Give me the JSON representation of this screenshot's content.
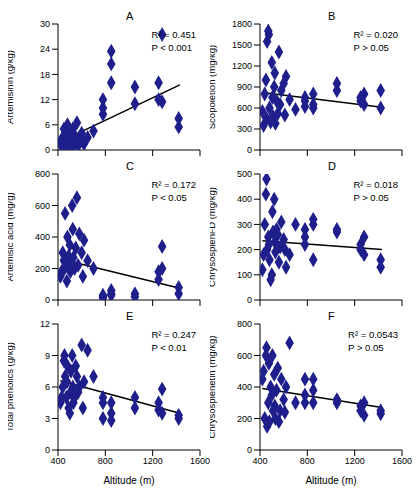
{
  "chart_data": [
    {
      "type": "scatter",
      "title": "A",
      "y_label": "Artemisinin (g/kg)",
      "annotations": [
        "R² = 0.451",
        "P < 0.001"
      ],
      "color": "#1f1f8c",
      "marker": "diamond",
      "tick_labels": "y",
      "xlim": [
        400,
        1600
      ],
      "xticks": [
        400,
        800,
        1200,
        1600
      ],
      "ylim": [
        0,
        30
      ],
      "yticks": [
        0,
        6,
        12,
        18,
        24,
        30
      ],
      "x": [
        420,
        430,
        440,
        450,
        455,
        460,
        470,
        475,
        480,
        490,
        500,
        505,
        510,
        520,
        525,
        530,
        540,
        550,
        560,
        570,
        580,
        600,
        610,
        620,
        650,
        700,
        780,
        780,
        780,
        850,
        850,
        850,
        1050,
        1050,
        1250,
        1250,
        1280,
        1280,
        1420,
        1420
      ],
      "values": [
        2,
        1,
        3,
        5,
        0.5,
        4,
        2,
        1.5,
        6,
        3,
        1,
        2.5,
        4.5,
        0.8,
        5,
        1.2,
        3.5,
        2,
        6.5,
        1,
        3,
        4,
        2,
        1.5,
        3,
        4.5,
        8.5,
        12,
        10,
        16,
        20.5,
        23.5,
        11,
        15,
        12,
        16,
        27.5,
        11.5,
        5.5,
        7.5
      ],
      "trend_line": {
        "x": [
          420,
          1430
        ],
        "y": [
          2,
          15.5
        ]
      }
    },
    {
      "type": "scatter",
      "title": "B",
      "y_label": "Scopoletion (mg/kg)",
      "annotations": [
        "R² = 0.020",
        "P > 0.05"
      ],
      "color": "#1f1f8c",
      "marker": "diamond",
      "tick_labels": "y",
      "xlim": [
        400,
        1600
      ],
      "xticks": [
        400,
        800,
        1200,
        1600
      ],
      "ylim": [
        0,
        1800
      ],
      "yticks": [
        0,
        300,
        600,
        900,
        1200,
        1500,
        1800
      ],
      "x": [
        420,
        430,
        440,
        450,
        455,
        460,
        470,
        475,
        480,
        490,
        500,
        505,
        510,
        520,
        525,
        530,
        540,
        550,
        560,
        570,
        580,
        600,
        610,
        620,
        650,
        700,
        780,
        780,
        780,
        850,
        850,
        850,
        1050,
        1050,
        1250,
        1250,
        1280,
        1280,
        1420,
        1420
      ],
      "values": [
        550,
        350,
        800,
        1000,
        450,
        1550,
        1700,
        1650,
        600,
        400,
        1250,
        750,
        480,
        900,
        1100,
        380,
        700,
        520,
        1400,
        650,
        850,
        950,
        500,
        1050,
        720,
        580,
        750,
        700,
        620,
        800,
        650,
        600,
        950,
        850,
        700,
        750,
        650,
        800,
        600,
        850
      ],
      "trend_line": {
        "x": [
          420,
          1430
        ],
        "y": [
          820,
          610
        ]
      }
    },
    {
      "type": "scatter",
      "title": "C",
      "y_label": "Artemisic acid (mg/g)",
      "annotations": [
        "R² = 0.172",
        "P < 0.05"
      ],
      "color": "#1f1f8c",
      "marker": "diamond",
      "tick_labels": "y",
      "xlim": [
        400,
        1600
      ],
      "xticks": [
        400,
        800,
        1200,
        1600
      ],
      "ylim": [
        0,
        800
      ],
      "yticks": [
        0,
        200,
        400,
        600,
        800
      ],
      "x": [
        420,
        430,
        440,
        450,
        455,
        460,
        470,
        475,
        480,
        490,
        500,
        505,
        510,
        520,
        525,
        530,
        540,
        550,
        560,
        570,
        580,
        600,
        610,
        620,
        650,
        700,
        780,
        780,
        780,
        850,
        850,
        850,
        1050,
        1050,
        1250,
        1250,
        1280,
        1280,
        1420,
        1420
      ],
      "values": [
        150,
        180,
        300,
        250,
        200,
        550,
        220,
        120,
        400,
        280,
        350,
        180,
        240,
        600,
        450,
        270,
        200,
        330,
        650,
        220,
        420,
        300,
        150,
        380,
        250,
        200,
        20,
        30,
        15,
        40,
        60,
        30,
        40,
        20,
        130,
        180,
        200,
        340,
        40,
        80
      ],
      "trend_line": {
        "x": [
          420,
          1430
        ],
        "y": [
          260,
          75
        ]
      }
    },
    {
      "type": "scatter",
      "title": "D",
      "y_label": "Chrysosplenl-D (mg/kg)",
      "annotations": [
        "R² = 0.018",
        "P > 0.05"
      ],
      "color": "#1f1f8c",
      "marker": "diamond",
      "tick_labels": "y",
      "xlim": [
        400,
        1600
      ],
      "xticks": [
        400,
        800,
        1200,
        1600
      ],
      "ylim": [
        0,
        500
      ],
      "yticks": [
        0,
        100,
        200,
        300,
        400,
        500
      ],
      "x": [
        420,
        430,
        440,
        450,
        455,
        460,
        470,
        475,
        480,
        490,
        500,
        505,
        510,
        520,
        525,
        530,
        540,
        550,
        560,
        570,
        580,
        600,
        610,
        620,
        650,
        700,
        780,
        780,
        780,
        850,
        850,
        850,
        1050,
        1050,
        1250,
        1250,
        1280,
        1280,
        1420,
        1420
      ],
      "values": [
        120,
        180,
        300,
        420,
        480,
        200,
        250,
        220,
        160,
        80,
        100,
        350,
        270,
        400,
        230,
        190,
        280,
        260,
        150,
        210,
        310,
        240,
        200,
        130,
        180,
        300,
        250,
        280,
        220,
        320,
        300,
        160,
        270,
        280,
        200,
        220,
        250,
        180,
        130,
        160
      ],
      "trend_line": {
        "x": [
          420,
          1430
        ],
        "y": [
          235,
          200
        ]
      }
    },
    {
      "type": "scatter",
      "title": "E",
      "y_label": "Total phenolics (g/kg)",
      "x_label": "Altitude (m)",
      "annotations": [
        "R² = 0.247",
        "P < 0.01"
      ],
      "color": "#1f1f8c",
      "marker": "diamond",
      "xlim": [
        400,
        1600
      ],
      "xticks": [
        400,
        800,
        1200,
        1600
      ],
      "ylim": [
        0,
        12
      ],
      "yticks": [
        0,
        3,
        6,
        9,
        12
      ],
      "x": [
        420,
        430,
        440,
        450,
        455,
        460,
        470,
        475,
        480,
        490,
        500,
        505,
        510,
        520,
        525,
        530,
        540,
        550,
        560,
        570,
        580,
        600,
        610,
        620,
        650,
        700,
        780,
        780,
        780,
        850,
        850,
        850,
        1050,
        1050,
        1250,
        1250,
        1280,
        1280,
        1420,
        1420
      ],
      "values": [
        4.5,
        5,
        6,
        8.5,
        9,
        7,
        5,
        6.5,
        8,
        4,
        3.5,
        5.5,
        7.5,
        9,
        6,
        4.5,
        5,
        8,
        7,
        5.5,
        6,
        10,
        4,
        6.5,
        9.5,
        7,
        3,
        5,
        4.5,
        4.5,
        2.8,
        3.5,
        4,
        5,
        3.8,
        4.5,
        5.8,
        3.5,
        3.3,
        3
      ],
      "trend_line": {
        "x": [
          420,
          1430
        ],
        "y": [
          6.6,
          3.5
        ]
      }
    },
    {
      "type": "scatter",
      "title": "F",
      "y_label": "Chrysosplenetin (mg/kg)",
      "x_label": "Altitude (m)",
      "annotations": [
        "R² = 0.0543",
        "P > 0.05"
      ],
      "color": "#1f1f8c",
      "marker": "diamond",
      "xlim": [
        400,
        1600
      ],
      "xticks": [
        400,
        800,
        1200,
        1600
      ],
      "ylim": [
        0,
        800
      ],
      "yticks": [
        0,
        200,
        400,
        600,
        800
      ],
      "x": [
        420,
        430,
        440,
        450,
        455,
        460,
        470,
        475,
        480,
        490,
        500,
        505,
        510,
        520,
        525,
        530,
        540,
        550,
        560,
        570,
        580,
        600,
        610,
        620,
        650,
        700,
        780,
        780,
        780,
        850,
        850,
        850,
        1050,
        1050,
        1250,
        1250,
        1280,
        1280,
        1420,
        1420
      ],
      "values": [
        450,
        500,
        200,
        600,
        650,
        150,
        300,
        550,
        180,
        400,
        350,
        600,
        250,
        480,
        280,
        200,
        380,
        520,
        180,
        250,
        450,
        320,
        240,
        400,
        680,
        300,
        350,
        450,
        300,
        300,
        450,
        380,
        320,
        300,
        250,
        280,
        220,
        300,
        230,
        250
      ],
      "trend_line": {
        "x": [
          420,
          1430
        ],
        "y": [
          390,
          270
        ]
      }
    }
  ]
}
